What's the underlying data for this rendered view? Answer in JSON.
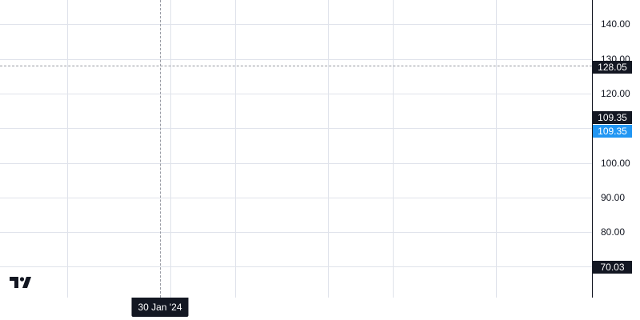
{
  "chart": {
    "type": "price-chart",
    "price_axis": {
      "ticks": [
        {
          "value": 140,
          "label": "140.00"
        },
        {
          "value": 120,
          "label": "120.00"
        },
        {
          "value": 100,
          "label": "100.00"
        },
        {
          "value": 90,
          "label": "90.00"
        },
        {
          "value": 80,
          "label": "80.00"
        }
      ],
      "hidden_tick": {
        "value": 130,
        "label": "130.00"
      }
    },
    "price_tags": {
      "crosshair": {
        "value": 128.05,
        "label": "128.05",
        "color": "#131722"
      },
      "last_dark": {
        "value": 109.35,
        "label": "109.35",
        "color": "#131722"
      },
      "last_blue": {
        "value": 109.35,
        "label": "109.35",
        "color": "#2196f3"
      },
      "low": {
        "value": 70.03,
        "label": "70.03",
        "color": "#131722"
      }
    },
    "time_axis": {
      "crosshair_label": "30 Jan '24"
    },
    "logo_icon": "tradingview-logo-icon",
    "colors": {
      "grid": "#e0e3eb",
      "axis_text": "#131722",
      "accent_blue": "#2196f3",
      "crosshair": "#9598a1"
    }
  }
}
